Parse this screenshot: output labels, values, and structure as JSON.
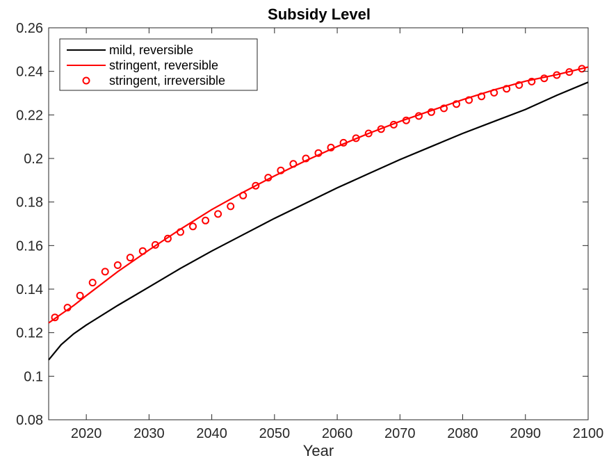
{
  "chart_data": {
    "type": "line",
    "title": "Subsidy Level",
    "xlabel": "Year",
    "ylabel": "",
    "xlim": [
      2014,
      2100
    ],
    "ylim": [
      0.08,
      0.26
    ],
    "xticks": [
      2020,
      2030,
      2040,
      2050,
      2060,
      2070,
      2080,
      2090,
      2100
    ],
    "xtick_labels": [
      "2020",
      "2030",
      "2040",
      "2050",
      "2060",
      "2070",
      "2080",
      "2090",
      "2100"
    ],
    "yticks": [
      0.08,
      0.1,
      0.12,
      0.14,
      0.16,
      0.18,
      0.2,
      0.22,
      0.24,
      0.26
    ],
    "ytick_labels": [
      "0.08",
      "0.1",
      "0.12",
      "0.14",
      "0.16",
      "0.18",
      "0.2",
      "0.22",
      "0.24",
      "0.26"
    ],
    "grid": false,
    "legend_position": "top-left",
    "series": [
      {
        "name": "mild, reversible",
        "style": "line",
        "color": "#000000",
        "x": [
          2014,
          2016,
          2018,
          2020,
          2025,
          2030,
          2035,
          2040,
          2045,
          2050,
          2055,
          2060,
          2065,
          2070,
          2075,
          2080,
          2085,
          2090,
          2095,
          2100
        ],
        "y": [
          0.1075,
          0.1145,
          0.1195,
          0.1235,
          0.1325,
          0.141,
          0.1495,
          0.1575,
          0.165,
          0.1725,
          0.1795,
          0.1865,
          0.193,
          0.1995,
          0.2055,
          0.2115,
          0.217,
          0.2225,
          0.229,
          0.235
        ]
      },
      {
        "name": "stringent, reversible",
        "style": "line",
        "color": "#ff0000",
        "x": [
          2014,
          2016,
          2018,
          2020,
          2025,
          2030,
          2035,
          2040,
          2045,
          2050,
          2055,
          2060,
          2065,
          2070,
          2075,
          2080,
          2085,
          2090,
          2095,
          2100
        ],
        "y": [
          0.1245,
          0.1285,
          0.1325,
          0.137,
          0.148,
          0.158,
          0.1675,
          0.1765,
          0.1845,
          0.192,
          0.199,
          0.2055,
          0.2115,
          0.217,
          0.222,
          0.227,
          0.2315,
          0.2355,
          0.2385,
          0.242
        ]
      },
      {
        "name": "stringent, irreversible",
        "style": "markers",
        "marker": "circle",
        "color": "#ff0000",
        "x": [
          2015,
          2017,
          2019,
          2021,
          2023,
          2025,
          2027,
          2029,
          2031,
          2033,
          2035,
          2037,
          2039,
          2041,
          2043,
          2045,
          2047,
          2049,
          2051,
          2053,
          2055,
          2057,
          2059,
          2061,
          2063,
          2065,
          2067,
          2069,
          2071,
          2073,
          2075,
          2077,
          2079,
          2081,
          2083,
          2085,
          2087,
          2089,
          2091,
          2093,
          2095,
          2097,
          2099
        ],
        "y": [
          0.127,
          0.1315,
          0.137,
          0.143,
          0.148,
          0.151,
          0.1545,
          0.1575,
          0.1603,
          0.1632,
          0.1662,
          0.1688,
          0.1715,
          0.1745,
          0.178,
          0.183,
          0.1875,
          0.1912,
          0.1945,
          0.1975,
          0.2,
          0.2025,
          0.205,
          0.2072,
          0.2093,
          0.2115,
          0.2135,
          0.2155,
          0.2175,
          0.2195,
          0.2213,
          0.223,
          0.225,
          0.2268,
          0.2285,
          0.2302,
          0.232,
          0.2337,
          0.2353,
          0.2368,
          0.2383,
          0.2397,
          0.2412
        ]
      }
    ]
  }
}
